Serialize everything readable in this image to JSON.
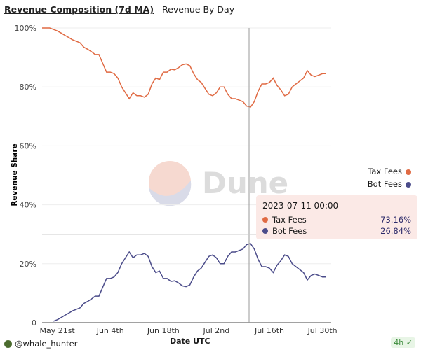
{
  "tabs": [
    {
      "label": "Revenue Composition (7d MA)",
      "active": true
    },
    {
      "label": "Revenue By Day",
      "active": false
    }
  ],
  "watermark": "Dune",
  "legend": [
    {
      "name": "Tax Fees",
      "color": "#e06a43"
    },
    {
      "name": "Bot Fees",
      "color": "#4b4c8a"
    }
  ],
  "tooltip": {
    "date": "2023-07-11 00:00",
    "rows": [
      {
        "name": "Tax Fees",
        "value": "73.16%",
        "color": "#e06a43"
      },
      {
        "name": "Bot Fees",
        "value": "26.84%",
        "color": "#4b4c8a"
      }
    ]
  },
  "footer": {
    "user": "@whale_hunter",
    "age": "4h"
  },
  "chart_data": {
    "type": "line",
    "xlabel": "Date UTC",
    "ylabel": "Revenue Share",
    "ylim": [
      0,
      100
    ],
    "yticks": [
      "0",
      "20%",
      "40%",
      "60%",
      "80%",
      "100%"
    ],
    "xticks": [
      {
        "label": "May 21st",
        "date": "2023-05-21"
      },
      {
        "label": "Jun 4th",
        "date": "2023-06-04"
      },
      {
        "label": "Jun 18th",
        "date": "2023-06-18"
      },
      {
        "label": "Jul 2nd",
        "date": "2023-07-02"
      },
      {
        "label": "Jul 16th",
        "date": "2023-07-16"
      },
      {
        "label": "Jul 30th",
        "date": "2023-07-30"
      }
    ],
    "grid": true,
    "legend_position": "right",
    "x": [
      "2023-05-17",
      "2023-05-18",
      "2023-05-19",
      "2023-05-20",
      "2023-05-21",
      "2023-05-22",
      "2023-05-23",
      "2023-05-24",
      "2023-05-25",
      "2023-05-26",
      "2023-05-27",
      "2023-05-28",
      "2023-05-29",
      "2023-05-30",
      "2023-05-31",
      "2023-06-01",
      "2023-06-02",
      "2023-06-03",
      "2023-06-04",
      "2023-06-05",
      "2023-06-06",
      "2023-06-07",
      "2023-06-08",
      "2023-06-09",
      "2023-06-10",
      "2023-06-11",
      "2023-06-12",
      "2023-06-13",
      "2023-06-14",
      "2023-06-15",
      "2023-06-16",
      "2023-06-17",
      "2023-06-18",
      "2023-06-19",
      "2023-06-20",
      "2023-06-21",
      "2023-06-22",
      "2023-06-23",
      "2023-06-24",
      "2023-06-25",
      "2023-06-26",
      "2023-06-27",
      "2023-06-28",
      "2023-06-29",
      "2023-06-30",
      "2023-07-01",
      "2023-07-02",
      "2023-07-03",
      "2023-07-04",
      "2023-07-05",
      "2023-07-06",
      "2023-07-07",
      "2023-07-08",
      "2023-07-09",
      "2023-07-10",
      "2023-07-11",
      "2023-07-12",
      "2023-07-13",
      "2023-07-14",
      "2023-07-15",
      "2023-07-16",
      "2023-07-17",
      "2023-07-18",
      "2023-07-19",
      "2023-07-20",
      "2023-07-21",
      "2023-07-22",
      "2023-07-23",
      "2023-07-24",
      "2023-07-25",
      "2023-07-26",
      "2023-07-27",
      "2023-07-28",
      "2023-07-29",
      "2023-07-30",
      "2023-07-31"
    ],
    "series": [
      {
        "name": "Tax Fees",
        "color": "#e06a43",
        "values": [
          100,
          100,
          100,
          99.5,
          99,
          98.3,
          97.5,
          96.8,
          96,
          95.5,
          95,
          93.5,
          92.8,
          92,
          91,
          91,
          88,
          85,
          85,
          84.5,
          83,
          80,
          78,
          76,
          78,
          77,
          77,
          76.5,
          77.5,
          81,
          83,
          82.5,
          85,
          85,
          86,
          85.8,
          86.5,
          87.5,
          87.8,
          87.2,
          84.5,
          82.5,
          81.5,
          79.5,
          77.5,
          77,
          78,
          80,
          80,
          77.5,
          76,
          76,
          75.5,
          75,
          73.5,
          73.16,
          75,
          78.5,
          81,
          81,
          81.5,
          83,
          80.5,
          79,
          77,
          77.5,
          80,
          81,
          82,
          83,
          85.5,
          84,
          83.5,
          84,
          84.5,
          84.5
        ]
      },
      {
        "name": "Bot Fees",
        "color": "#4b4c8a",
        "values": [
          null,
          null,
          null,
          0.5,
          1,
          1.7,
          2.5,
          3.2,
          4,
          4.5,
          5,
          6.5,
          7.2,
          8,
          9,
          9,
          12,
          15,
          15,
          15.5,
          17,
          20,
          22,
          24,
          22,
          23,
          23,
          23.5,
          22.5,
          19,
          17,
          17.5,
          15,
          15,
          14,
          14.2,
          13.5,
          12.5,
          12.2,
          12.8,
          15.5,
          17.5,
          18.5,
          20.5,
          22.5,
          23,
          22,
          20,
          20,
          22.5,
          24,
          24,
          24.5,
          25,
          26.5,
          26.84,
          25,
          21.5,
          19,
          19,
          18.5,
          17,
          19.5,
          21,
          23,
          22.5,
          20,
          19,
          18,
          17,
          14.5,
          16,
          16.5,
          16,
          15.5,
          15.5
        ]
      }
    ],
    "hover": {
      "date": "2023-07-11"
    }
  }
}
